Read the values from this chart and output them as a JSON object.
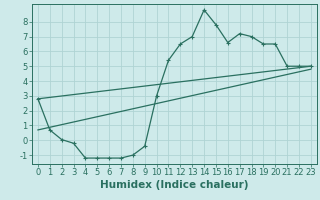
{
  "xlabel": "Humidex (Indice chaleur)",
  "ylabel": "",
  "background_color": "#ceeaea",
  "line_color": "#2a7060",
  "grid_color": "#afd4d4",
  "xlim": [
    -0.5,
    23.5
  ],
  "ylim": [
    -1.6,
    9.2
  ],
  "xticks": [
    0,
    1,
    2,
    3,
    4,
    5,
    6,
    7,
    8,
    9,
    10,
    11,
    12,
    13,
    14,
    15,
    16,
    17,
    18,
    19,
    20,
    21,
    22,
    23
  ],
  "yticks": [
    -1,
    0,
    1,
    2,
    3,
    4,
    5,
    6,
    7,
    8
  ],
  "line1_x": [
    0,
    1,
    2,
    3,
    4,
    5,
    6,
    7,
    8,
    9,
    10,
    11,
    12,
    13,
    14,
    15,
    16,
    17,
    18,
    19,
    20,
    21,
    22,
    23
  ],
  "line1_y": [
    2.8,
    0.7,
    0.05,
    -0.2,
    -1.2,
    -1.2,
    -1.2,
    -1.2,
    -1.0,
    -0.4,
    3.0,
    5.4,
    6.5,
    7.0,
    8.8,
    7.8,
    6.6,
    7.2,
    7.0,
    6.5,
    6.5,
    5.0,
    5.0,
    5.0
  ],
  "line2_x": [
    0,
    23
  ],
  "line2_y": [
    2.8,
    5.0
  ],
  "line3_x": [
    0,
    23
  ],
  "line3_y": [
    0.7,
    4.8
  ],
  "fontsize": 7,
  "tick_fontsize": 6,
  "xlabel_fontsize": 7.5,
  "xlabel_fontweight": "bold"
}
